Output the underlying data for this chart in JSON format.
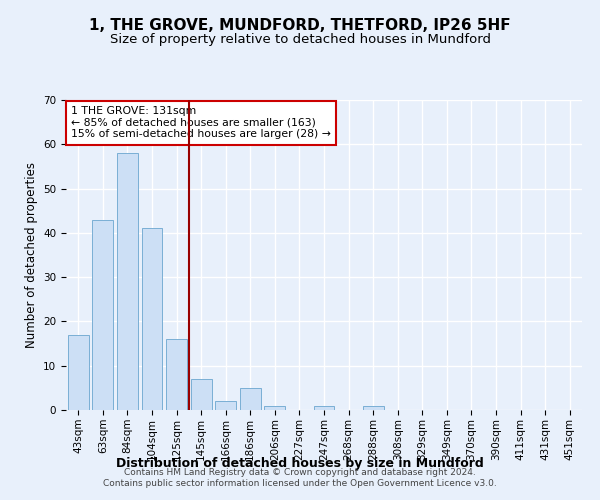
{
  "title": "1, THE GROVE, MUNDFORD, THETFORD, IP26 5HF",
  "subtitle": "Size of property relative to detached houses in Mundford",
  "xlabel": "Distribution of detached houses by size in Mundford",
  "ylabel": "Number of detached properties",
  "categories": [
    "43sqm",
    "63sqm",
    "84sqm",
    "104sqm",
    "125sqm",
    "145sqm",
    "166sqm",
    "186sqm",
    "206sqm",
    "227sqm",
    "247sqm",
    "268sqm",
    "288sqm",
    "308sqm",
    "329sqm",
    "349sqm",
    "370sqm",
    "390sqm",
    "411sqm",
    "431sqm",
    "451sqm"
  ],
  "values": [
    17,
    43,
    58,
    41,
    16,
    7,
    2,
    5,
    1,
    0,
    1,
    0,
    1,
    0,
    0,
    0,
    0,
    0,
    0,
    0,
    0
  ],
  "bar_color": "#ccdff5",
  "bar_edge_color": "#7aafd4",
  "vline_x": 4.5,
  "vline_color": "#990000",
  "annotation_text": "1 THE GROVE: 131sqm\n← 85% of detached houses are smaller (163)\n15% of semi-detached houses are larger (28) →",
  "annotation_box_color": "#ffffff",
  "annotation_box_edge_color": "#cc0000",
  "ylim": [
    0,
    70
  ],
  "yticks": [
    0,
    10,
    20,
    30,
    40,
    50,
    60,
    70
  ],
  "footer": "Contains HM Land Registry data © Crown copyright and database right 2024.\nContains public sector information licensed under the Open Government Licence v3.0.",
  "bg_color": "#e8f0fb",
  "plot_bg_color": "#e8f0fb",
  "grid_color": "#ffffff",
  "title_fontsize": 11,
  "subtitle_fontsize": 9.5,
  "tick_fontsize": 7.5,
  "ylabel_fontsize": 8.5,
  "xlabel_fontsize": 9
}
